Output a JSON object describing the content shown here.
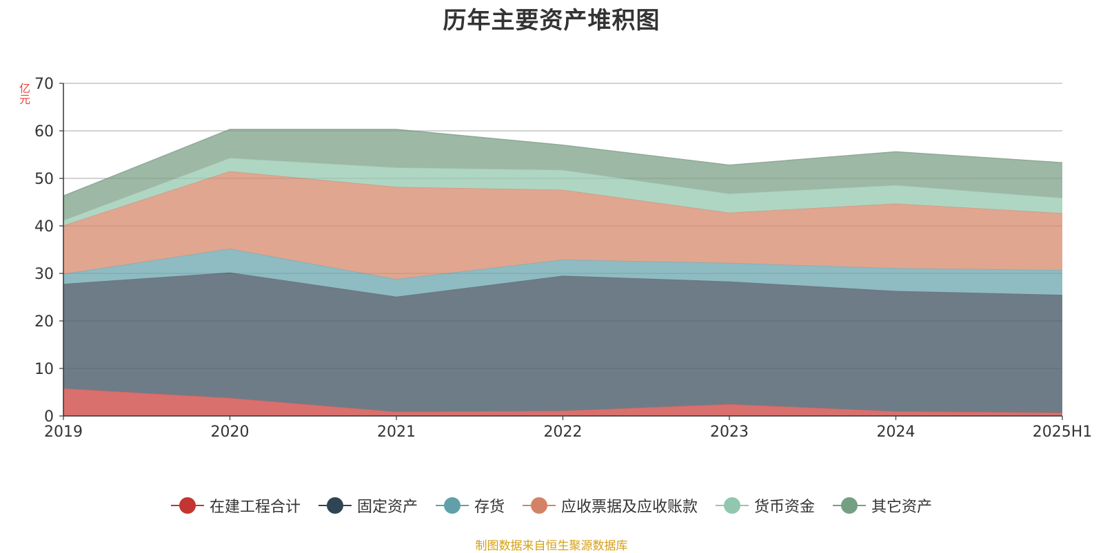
{
  "chart_data": {
    "type": "area",
    "title": "历年主要资产堆积图",
    "unit": "亿元",
    "categories": [
      "2019",
      "2020",
      "2021",
      "2022",
      "2023",
      "2024",
      "2025H1"
    ],
    "ylim": [
      0,
      70
    ],
    "yticks": [
      0,
      10,
      20,
      30,
      40,
      50,
      60,
      70
    ],
    "grid": true,
    "legend_position": "bottom",
    "stacked": true,
    "series": [
      {
        "name": "在建工程合计",
        "color": "#d9706e",
        "marker_color": "#c23531",
        "values": [
          5.8,
          3.8,
          0.9,
          1.1,
          2.5,
          1.0,
          0.7
        ]
      },
      {
        "name": "固定资产",
        "color": "#6e7c87",
        "marker_color": "#2f4554",
        "values": [
          22.0,
          26.4,
          24.2,
          28.4,
          25.8,
          25.3,
          24.8
        ]
      },
      {
        "name": "存货",
        "color": "#8fbbc2",
        "marker_color": "#61a0a8",
        "values": [
          2.1,
          5.0,
          3.7,
          3.4,
          3.9,
          4.8,
          5.2
        ]
      },
      {
        "name": "应收票据及应收账款",
        "color": "#e0a690",
        "marker_color": "#d48265",
        "values": [
          10.2,
          16.3,
          19.4,
          14.7,
          10.6,
          13.6,
          12.0
        ]
      },
      {
        "name": "货币资金",
        "color": "#afd6c3",
        "marker_color": "#91c7ae",
        "values": [
          1.1,
          2.8,
          4.1,
          4.2,
          4.0,
          3.9,
          3.2
        ]
      },
      {
        "name": "其它资产",
        "color": "#9db8a4",
        "marker_color": "#749f83",
        "values": [
          5.1,
          6.0,
          8.0,
          5.2,
          6.0,
          7.0,
          7.4
        ]
      }
    ]
  },
  "source": "制图数据来自恒生聚源数据库"
}
